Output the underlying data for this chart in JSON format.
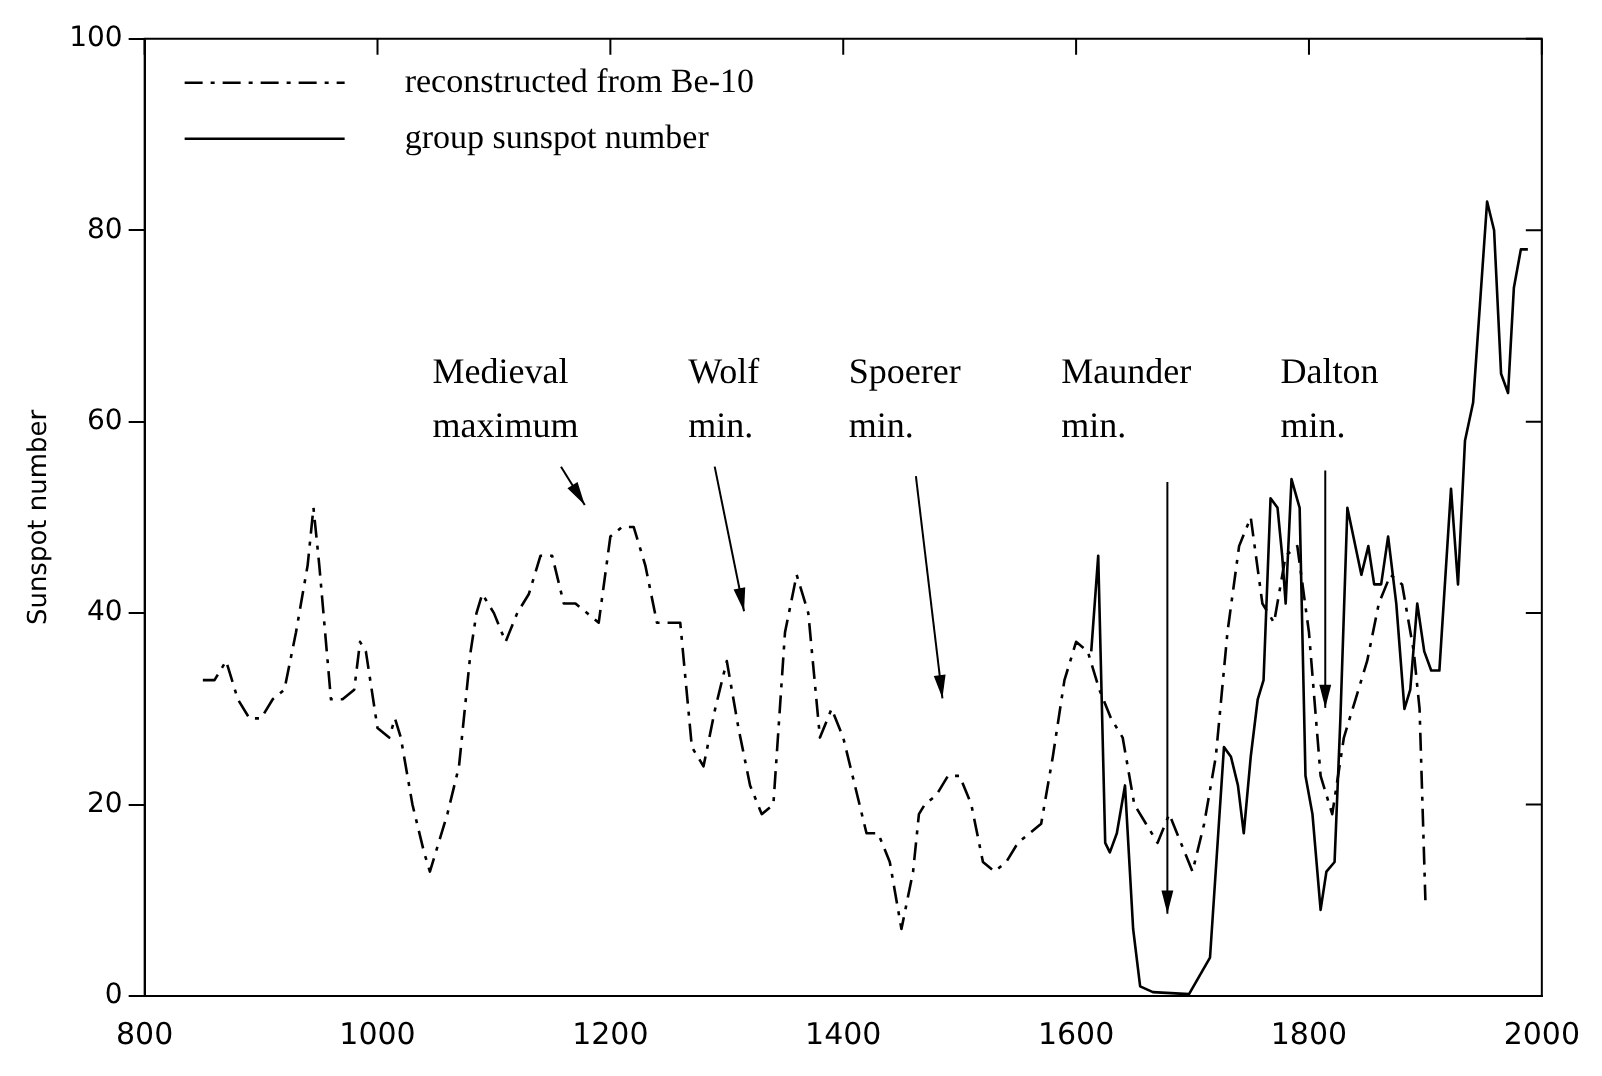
{
  "chart_data": {
    "type": "line",
    "ylabel": "Sunspot number",
    "xlim": [
      800,
      2000
    ],
    "xticks": [
      800,
      1000,
      1200,
      1400,
      1600,
      1800,
      2000
    ],
    "ylim": [
      0,
      100
    ],
    "yticks": [
      0,
      20,
      40,
      60,
      80,
      100
    ],
    "grid": false,
    "legend": "top left",
    "marker": "none",
    "series": [
      {
        "name": "reconstructed from Be-10",
        "color": "#000000",
        "line_style": "dashed",
        "x": [
          850,
          860,
          870,
          880,
          890,
          900,
          910,
          920,
          930,
          940,
          945,
          950,
          960,
          970,
          980,
          985,
          990,
          1000,
          1010,
          1015,
          1020,
          1030,
          1040,
          1045,
          1050,
          1060,
          1070,
          1080,
          1085,
          1090,
          1100,
          1110,
          1120,
          1130,
          1140,
          1150,
          1160,
          1170,
          1180,
          1190,
          1200,
          1210,
          1220,
          1230,
          1240,
          1250,
          1260,
          1270,
          1280,
          1290,
          1300,
          1310,
          1320,
          1330,
          1340,
          1350,
          1360,
          1370,
          1380,
          1390,
          1400,
          1410,
          1420,
          1430,
          1440,
          1450,
          1460,
          1465,
          1470,
          1480,
          1490,
          1500,
          1510,
          1520,
          1530,
          1540,
          1550,
          1560,
          1570,
          1580,
          1590,
          1600,
          1610,
          1620,
          1630,
          1640,
          1650,
          1660,
          1670,
          1680,
          1690,
          1700,
          1710,
          1720,
          1730,
          1740,
          1750,
          1760,
          1770,
          1780,
          1790,
          1800,
          1810,
          1820,
          1830,
          1840,
          1850,
          1860,
          1870,
          1880,
          1890,
          1895,
          1900
        ],
        "values": [
          33,
          33,
          35,
          31,
          29,
          29,
          31,
          32,
          38,
          45,
          51,
          45,
          31,
          31,
          32,
          37,
          36,
          28,
          27,
          29,
          27,
          20,
          15,
          13,
          15,
          19,
          24,
          36,
          40,
          42,
          40,
          37,
          40,
          42,
          46,
          46,
          41,
          41,
          40,
          39,
          48,
          49,
          49,
          45,
          39,
          39,
          39,
          26,
          24,
          30,
          35,
          28,
          22,
          19,
          20,
          38,
          44,
          40,
          27,
          30,
          27,
          22,
          17,
          17,
          14,
          7,
          13,
          19,
          20,
          21,
          23,
          23,
          20,
          14,
          13,
          14,
          16,
          17,
          18,
          25,
          33,
          37,
          36,
          32,
          29,
          27,
          20,
          18,
          16,
          19,
          16,
          13,
          18,
          25,
          38,
          47,
          50,
          41,
          39,
          46,
          47,
          38,
          23,
          19,
          27,
          31,
          35,
          41,
          44,
          43,
          36,
          30,
          10
        ]
      },
      {
        "name": "group sunspot number",
        "color": "#000000",
        "line_style": "solid",
        "x": [
          1613,
          1619,
          1625,
          1629,
          1635,
          1642,
          1649,
          1655,
          1666,
          1697,
          1715,
          1727,
          1733,
          1739,
          1744,
          1750,
          1756,
          1761,
          1767,
          1773,
          1777,
          1780,
          1785,
          1792,
          1797,
          1803,
          1810,
          1815,
          1822,
          1827,
          1833,
          1845,
          1851,
          1856,
          1862,
          1868,
          1875,
          1882,
          1887,
          1893,
          1899,
          1905,
          1912,
          1922,
          1928,
          1934,
          1941,
          1953,
          1959,
          1965,
          1971,
          1976,
          1982,
          1988
        ],
        "values": [
          36,
          46,
          16,
          15,
          17,
          22,
          7,
          1,
          0.4,
          0.2,
          4,
          26,
          25,
          22,
          17,
          25,
          31,
          33,
          52,
          51,
          46,
          41,
          54,
          51,
          23,
          19,
          9,
          13,
          14,
          29,
          51,
          44,
          47,
          43,
          43,
          48,
          41,
          30,
          32,
          41,
          36,
          34,
          34,
          53,
          43,
          58,
          62,
          83,
          80,
          65,
          63,
          74,
          78,
          78
        ]
      }
    ],
    "annotations": [
      "Medieval\nmaximum",
      "Wolf\nmin.",
      "Spoerer\nmin.",
      "Maunder\nmin.",
      "Dalton\nmin."
    ]
  }
}
